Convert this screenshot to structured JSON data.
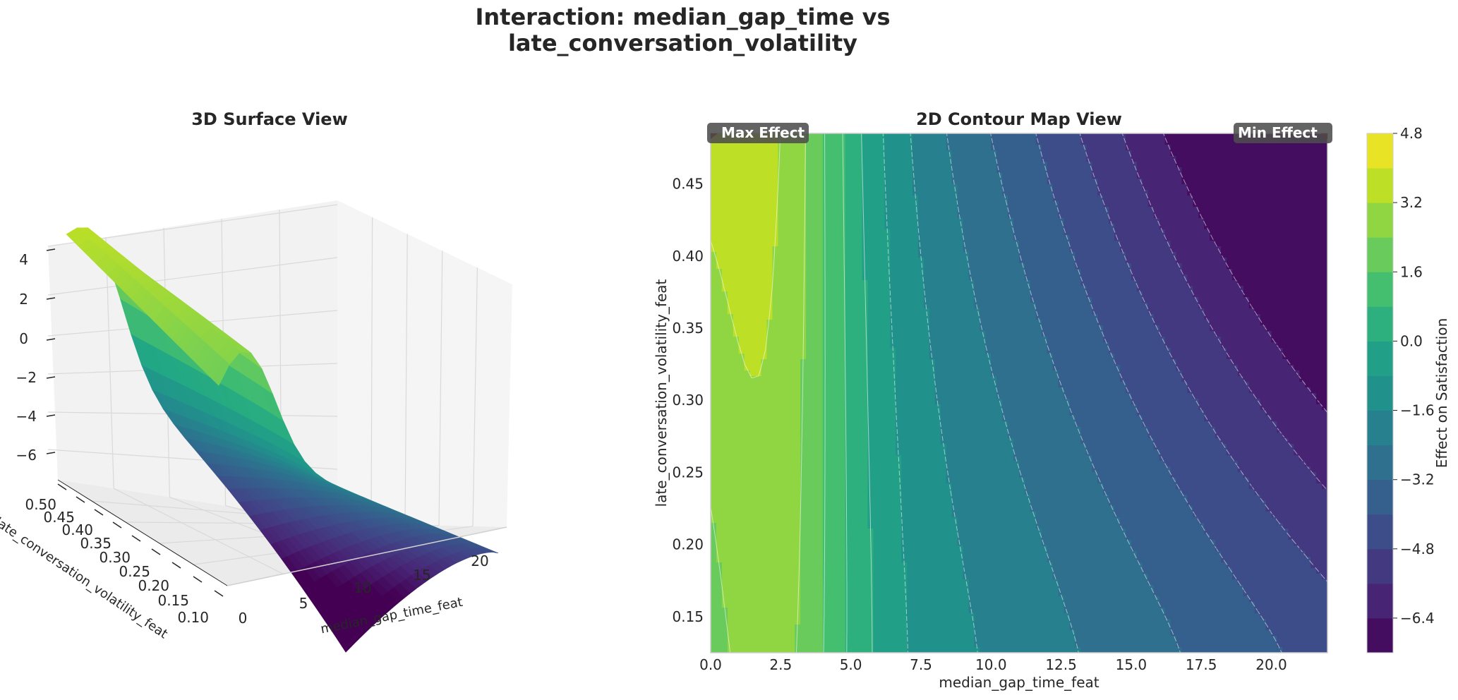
{
  "figure": {
    "title_line1": "Interaction: median_gap_time vs",
    "title_line2": "late_conversation_volatility"
  },
  "colors": {
    "viridis": [
      "#440154",
      "#482475",
      "#414487",
      "#355f8d",
      "#2a788e",
      "#21918c",
      "#22a884",
      "#44bf70",
      "#7ad151",
      "#bddf26",
      "#fde725"
    ],
    "pane": "#f2f2f2",
    "grid": "#d9d9d9",
    "annotation_box": "#4d4d4d",
    "marker": "#8b0000"
  },
  "chart_data": [
    {
      "type": "surface3d",
      "title": "3D Surface View",
      "xlabel": "median_gap_time_feat",
      "ylabel": "late_conversation_volatility_feat",
      "zlabel": "",
      "x_ticks": [
        "0",
        "5",
        "10",
        "15",
        "20"
      ],
      "y_ticks": [
        "0.10",
        "0.15",
        "0.20",
        "0.25",
        "0.30",
        "0.35",
        "0.40",
        "0.45",
        "0.50"
      ],
      "z_ticks": [
        "4",
        "2",
        "0",
        "−2",
        "−4",
        "−6"
      ],
      "xlim": [
        0,
        22
      ],
      "ylim": [
        0.1,
        0.5
      ],
      "zlim": [
        -7,
        4.8
      ],
      "colormap": "viridis"
    },
    {
      "type": "contour",
      "title": "2D Contour Map View",
      "xlabel": "median_gap_time_feat",
      "ylabel": "late_conversation_volatility_feat",
      "x_ticks": [
        "0.0",
        "2.5",
        "5.0",
        "7.5",
        "10.0",
        "12.5",
        "15.0",
        "17.5",
        "20.0"
      ],
      "x_tick_values": [
        0,
        2.5,
        5,
        7.5,
        10,
        12.5,
        15,
        17.5,
        20
      ],
      "y_ticks": [
        "0.15",
        "0.20",
        "0.25",
        "0.30",
        "0.35",
        "0.40",
        "0.45"
      ],
      "y_tick_values": [
        0.15,
        0.2,
        0.25,
        0.3,
        0.35,
        0.4,
        0.45
      ],
      "xlim": [
        0,
        22
      ],
      "ylim": [
        0.125,
        0.485
      ],
      "levels_min": -7.2,
      "levels_max": 4.8,
      "levels_step": 0.8,
      "colormap": "viridis",
      "colorbar": {
        "label": "Effect on Satisfaction",
        "ticks": [
          "4.8",
          "3.2",
          "1.6",
          "0.0",
          "−1.6",
          "−3.2",
          "−4.8",
          "−6.4"
        ],
        "tick_values": [
          4.8,
          3.2,
          1.6,
          0.0,
          -1.6,
          -3.2,
          -4.8,
          -6.4
        ]
      },
      "annotations": {
        "max": "Max Effect",
        "min": "Min Effect"
      }
    }
  ]
}
